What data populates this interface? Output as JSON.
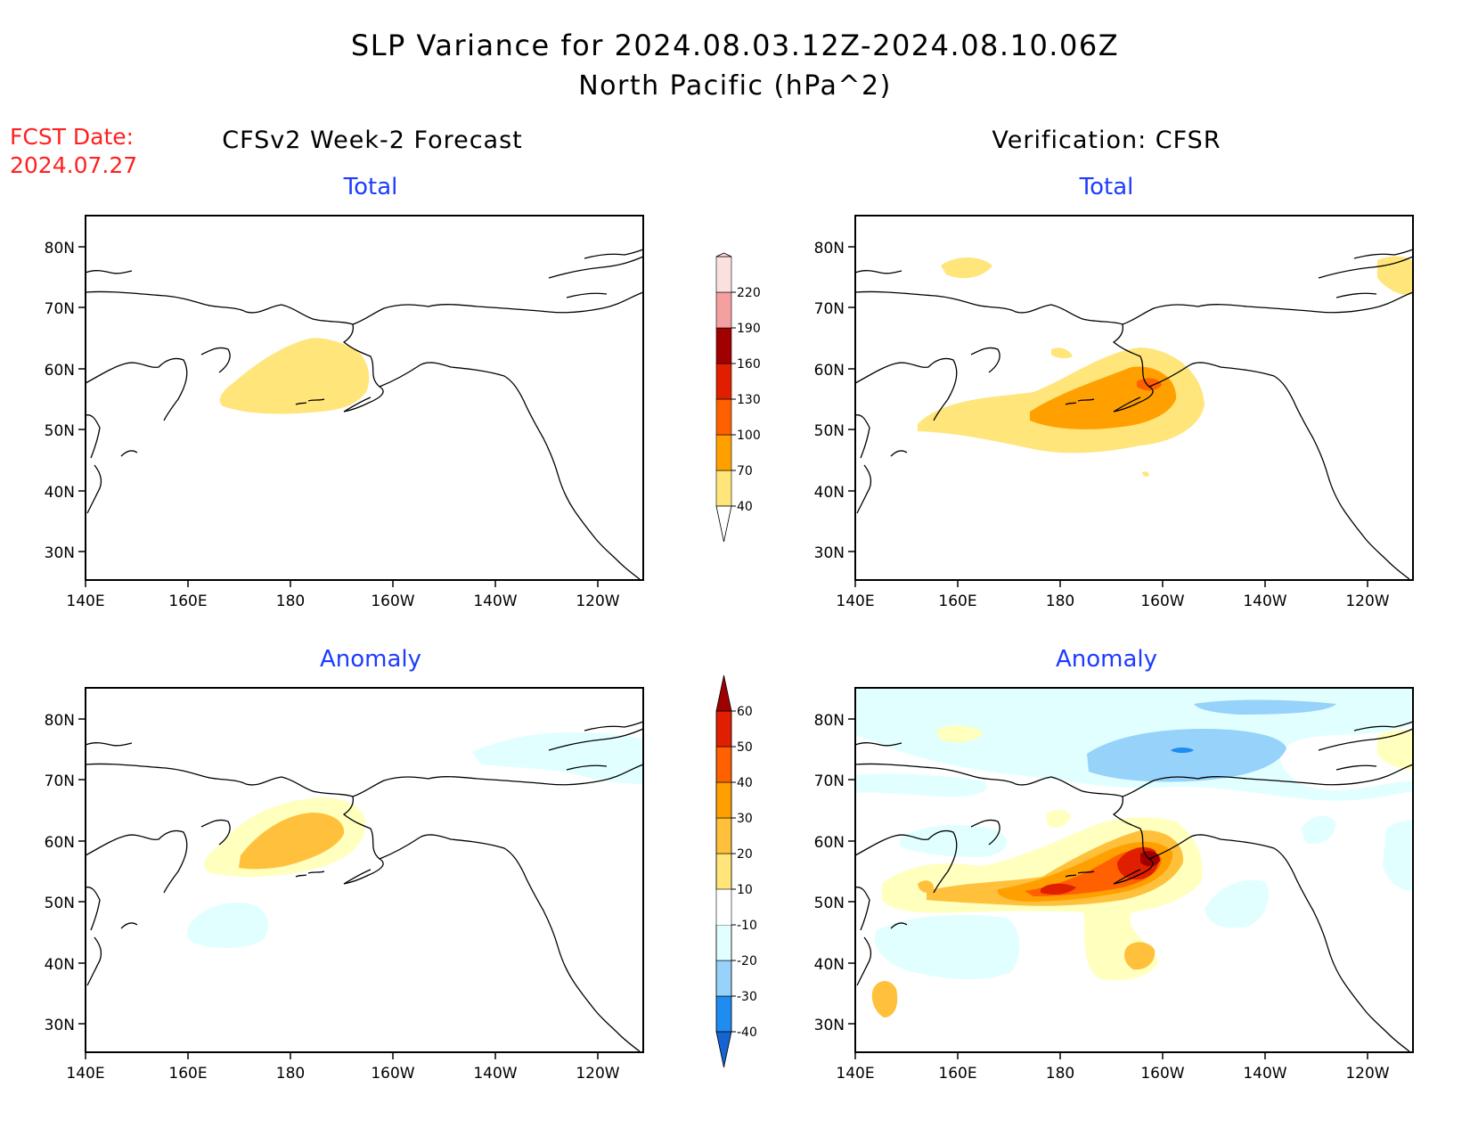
{
  "header": {
    "title_line1": "SLP Variance for 2024.08.03.12Z-2024.08.10.06Z",
    "title_line2": "North Pacific (hPa^2)",
    "fcst_date_label": "FCST Date:",
    "fcst_date_value": "2024.07.27"
  },
  "columns": {
    "left": "CFSv2 Week-2 Forecast",
    "right": "Verification: CFSR"
  },
  "panels": {
    "top_left_title": "Total",
    "top_right_title": "Total",
    "bottom_left_title": "Anomaly",
    "bottom_right_title": "Anomaly"
  },
  "axes": {
    "lat_ticks": [
      "80N",
      "70N",
      "60N",
      "50N",
      "40N",
      "30N"
    ],
    "lon_ticks": [
      "140E",
      "160E",
      "180",
      "160W",
      "140W",
      "120W"
    ]
  },
  "legend_total": {
    "levels": [
      "40",
      "70",
      "100",
      "130",
      "160",
      "190",
      "220"
    ],
    "colors": [
      "#ffe57a",
      "#ffa000",
      "#ff6000",
      "#e01e00",
      "#a00000",
      "#f4a0a0",
      "#fbe0e0"
    ]
  },
  "legend_anomaly": {
    "levels": [
      "-40",
      "-30",
      "-20",
      "-10",
      "10",
      "20",
      "30",
      "40",
      "50",
      "60"
    ],
    "colors": [
      "#1464d2",
      "#1e8cf0",
      "#96d2fa",
      "#e1ffff",
      "#ffffff",
      "#ffe57a",
      "#ffc03c",
      "#ffa000",
      "#ff6000",
      "#e01e00",
      "#a00000"
    ]
  }
}
